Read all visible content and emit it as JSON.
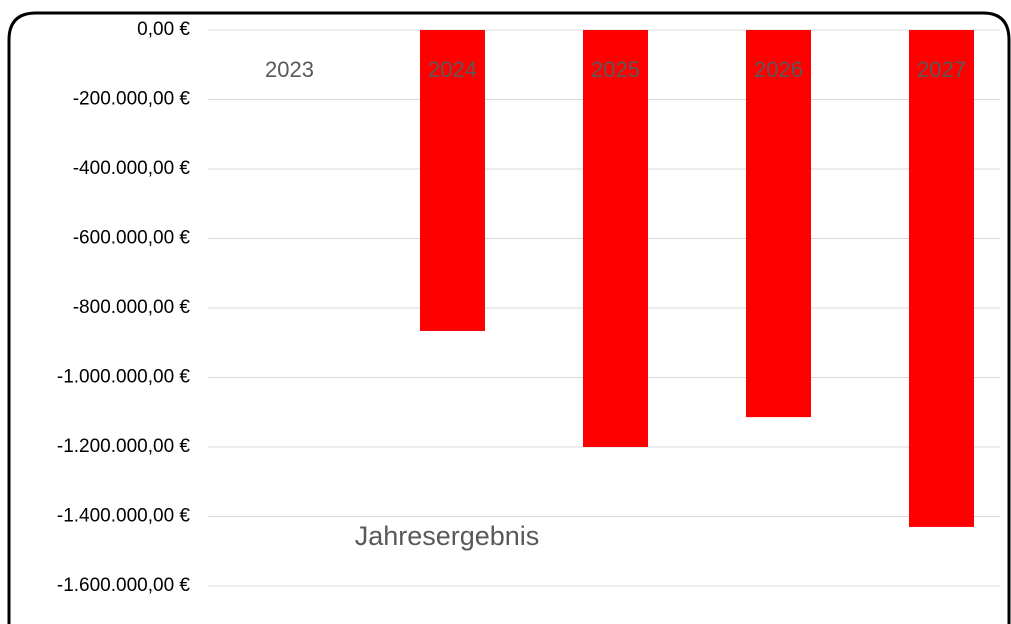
{
  "chart_data": {
    "type": "bar",
    "categories": [
      "2023",
      "2024",
      "2025",
      "2026",
      "2027"
    ],
    "series": [
      {
        "name": "Jahresergebnis",
        "color": "#ff0000",
        "values": [
          0,
          -866000,
          -1200000,
          -1114000,
          -1430000
        ]
      }
    ],
    "ylim": [
      -1600000,
      0
    ],
    "yticks": [
      {
        "value": 0,
        "label": "0,00 €"
      },
      {
        "value": -200000,
        "label": "-200.000,00 €"
      },
      {
        "value": -400000,
        "label": "-400.000,00 €"
      },
      {
        "value": -600000,
        "label": "-600.000,00 €"
      },
      {
        "value": -800000,
        "label": "-800.000,00 €"
      },
      {
        "value": -1000000,
        "label": "-1.000.000,00 €"
      },
      {
        "value": -1200000,
        "label": "-1.200.000,00 €"
      },
      {
        "value": -1400000,
        "label": "-1.400.000,00 €"
      },
      {
        "value": -1600000,
        "label": "-1.600.000,00 €"
      }
    ],
    "grid": true
  }
}
